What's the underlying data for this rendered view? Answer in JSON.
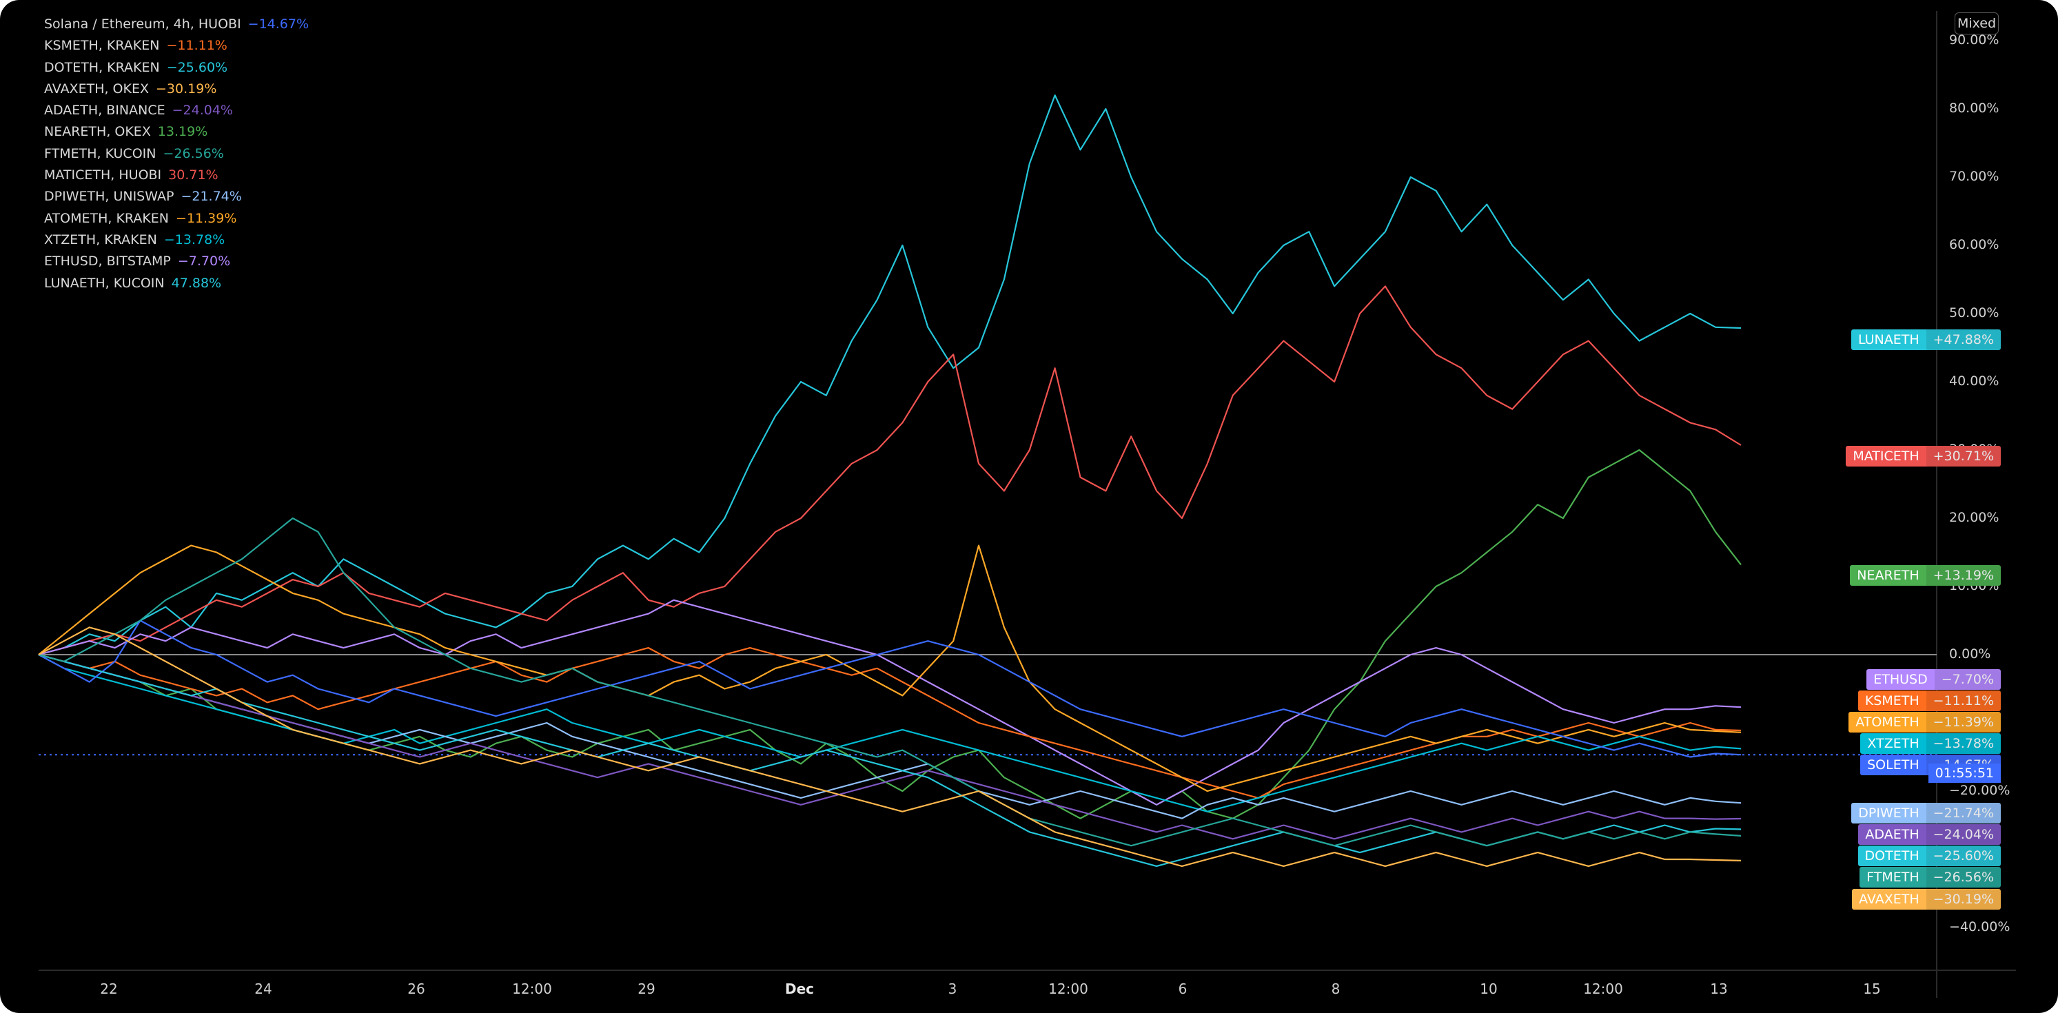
{
  "legend": [
    {
      "label": "Solana / Ethereum, 4h, HUOBI",
      "value": "−14.67%",
      "color": "#3d6bff"
    },
    {
      "label": "KSMETH, KRAKEN",
      "value": "−11.11%",
      "color": "#ff6d1f"
    },
    {
      "label": "DOTETH, KRAKEN",
      "value": "−25.60%",
      "color": "#26c6da"
    },
    {
      "label": "AVAXETH, OKEX",
      "value": "−30.19%",
      "color": "#ffb74d"
    },
    {
      "label": "ADAETH, BINANCE",
      "value": "−24.04%",
      "color": "#7e57c2"
    },
    {
      "label": "NEARETH, OKEX",
      "value": "13.19%",
      "color": "#4caf50"
    },
    {
      "label": "FTMETH, KUCOIN",
      "value": "−26.56%",
      "color": "#26a69a"
    },
    {
      "label": "MATICETH, HUOBI",
      "value": "30.71%",
      "color": "#ef5350"
    },
    {
      "label": "DPIWETH, UNISWAP",
      "value": "−21.74%",
      "color": "#90bff9"
    },
    {
      "label": "ATOMETH, KRAKEN",
      "value": "−11.39%",
      "color": "#ffa726"
    },
    {
      "label": "XTZETH, KRAKEN",
      "value": "−13.78%",
      "color": "#00bcd4"
    },
    {
      "label": "ETHUSD, BITSTAMP",
      "value": "−7.70%",
      "color": "#b388ff"
    },
    {
      "label": "LUNAETH, KUCOIN",
      "value": "47.88%",
      "color": "#26c6da"
    }
  ],
  "scale_mode": "Mixed",
  "price_tags": [
    {
      "name": "LUNAETH",
      "value": "+47.88%",
      "color": "#26c6da",
      "pct": 47.88
    },
    {
      "name": "MATICETH",
      "value": "+30.71%",
      "color": "#ef5350",
      "pct": 30.71
    },
    {
      "name": "NEARETH",
      "value": "+13.19%",
      "color": "#4caf50",
      "pct": 13.19
    },
    {
      "name": "ETHUSD",
      "value": "−7.70%",
      "color": "#b388ff",
      "pct": -7.7
    },
    {
      "name": "KSMETH",
      "value": "−11.11%",
      "color": "#ff6d1f",
      "pct": -11.11
    },
    {
      "name": "ATOMETH",
      "value": "−11.39%",
      "color": "#ffa726",
      "pct": -11.39
    },
    {
      "name": "XTZETH",
      "value": "−13.78%",
      "color": "#00bcd4",
      "pct": -13.78
    },
    {
      "name": "SOLETH",
      "value": "−14.67%",
      "color": "#3d6bff",
      "pct": -14.67
    },
    {
      "name": "DPIWETH",
      "value": "−21.74%",
      "color": "#90bff9",
      "pct": -21.74
    },
    {
      "name": "ADAETH",
      "value": "−24.04%",
      "color": "#7e57c2",
      "pct": -24.04
    },
    {
      "name": "DOTETH",
      "value": "−25.60%",
      "color": "#26c6da",
      "pct": -25.6
    },
    {
      "name": "FTMETH",
      "value": "−26.56%",
      "color": "#26a69a",
      "pct": -26.56
    },
    {
      "name": "AVAXETH",
      "value": "−30.19%",
      "color": "#ffb74d",
      "pct": -30.19
    }
  ],
  "countdown": "01:55:51",
  "chart_data": {
    "type": "line",
    "ylim": [
      -45,
      92
    ],
    "y_ticks": [
      {
        "v": 90,
        "label": "90.00%"
      },
      {
        "v": 80,
        "label": "80.00%"
      },
      {
        "v": 70,
        "label": "70.00%"
      },
      {
        "v": 60,
        "label": "60.00%"
      },
      {
        "v": 50,
        "label": "50.00%"
      },
      {
        "v": 40,
        "label": "40.00%"
      },
      {
        "v": 30,
        "label": "30.00%"
      },
      {
        "v": 20,
        "label": "20.00%"
      },
      {
        "v": 10,
        "label": "10.00%"
      },
      {
        "v": 0,
        "label": "0.00%"
      },
      {
        "v": -20,
        "label": "−20.00%"
      },
      {
        "v": -40,
        "label": "−40.00%"
      }
    ],
    "x_ticks": [
      {
        "label": "22"
      },
      {
        "label": "24"
      },
      {
        "label": "26"
      },
      {
        "label": "12:00"
      },
      {
        "label": "29"
      },
      {
        "label": "Dec",
        "bold": true
      },
      {
        "label": "3"
      },
      {
        "label": "12:00"
      },
      {
        "label": "6"
      },
      {
        "label": "8"
      },
      {
        "label": "10"
      },
      {
        "label": "12:00"
      },
      {
        "label": "13"
      },
      {
        "label": "15"
      }
    ],
    "series": [
      {
        "name": "LUNAETH",
        "color": "#26c6da",
        "values": [
          0,
          1,
          3,
          2,
          5,
          7,
          4,
          9,
          8,
          10,
          12,
          10,
          14,
          12,
          10,
          8,
          6,
          5,
          4,
          6,
          9,
          10,
          14,
          16,
          14,
          17,
          15,
          20,
          28,
          35,
          40,
          38,
          46,
          52,
          60,
          48,
          42,
          45,
          55,
          72,
          82,
          74,
          80,
          70,
          62,
          58,
          55,
          50,
          56,
          60,
          62,
          54,
          58,
          62,
          70,
          68,
          62,
          66,
          60,
          56,
          52,
          55,
          50,
          46,
          48,
          50,
          48,
          47.88
        ]
      },
      {
        "name": "MATICETH",
        "color": "#ef5350",
        "values": [
          0,
          1,
          2,
          3,
          2,
          4,
          6,
          8,
          7,
          9,
          11,
          10,
          12,
          9,
          8,
          7,
          9,
          8,
          7,
          6,
          5,
          8,
          10,
          12,
          8,
          7,
          9,
          10,
          14,
          18,
          20,
          24,
          28,
          30,
          34,
          40,
          44,
          28,
          24,
          30,
          42,
          26,
          24,
          32,
          24,
          20,
          28,
          38,
          42,
          46,
          43,
          40,
          50,
          54,
          48,
          44,
          42,
          38,
          36,
          40,
          44,
          46,
          42,
          38,
          36,
          34,
          33,
          30.71
        ]
      },
      {
        "name": "NEARETH",
        "color": "#4caf50",
        "values": [
          0,
          -1,
          -2,
          -3,
          -4,
          -6,
          -5,
          -8,
          -9,
          -10,
          -11,
          -12,
          -13,
          -14,
          -13,
          -12,
          -14,
          -15,
          -13,
          -12,
          -14,
          -15,
          -13,
          -12,
          -11,
          -14,
          -13,
          -12,
          -11,
          -14,
          -16,
          -13,
          -15,
          -18,
          -20,
          -17,
          -15,
          -14,
          -18,
          -20,
          -22,
          -24,
          -22,
          -20,
          -22,
          -20,
          -23,
          -24,
          -22,
          -18,
          -14,
          -8,
          -4,
          2,
          6,
          10,
          12,
          15,
          18,
          22,
          20,
          26,
          28,
          30,
          27,
          24,
          18,
          13.19
        ]
      },
      {
        "name": "ETHUSD",
        "color": "#b388ff",
        "values": [
          0,
          1,
          2,
          1,
          3,
          2,
          4,
          3,
          2,
          1,
          3,
          2,
          1,
          2,
          3,
          1,
          0,
          2,
          3,
          1,
          2,
          3,
          4,
          5,
          6,
          8,
          7,
          6,
          5,
          4,
          3,
          2,
          1,
          0,
          -2,
          -4,
          -6,
          -8,
          -10,
          -12,
          -14,
          -16,
          -18,
          -20,
          -22,
          -20,
          -18,
          -16,
          -14,
          -10,
          -8,
          -6,
          -4,
          -2,
          0,
          1,
          0,
          -2,
          -4,
          -6,
          -8,
          -9,
          -10,
          -9,
          -8,
          -8,
          -7.5,
          -7.7
        ]
      },
      {
        "name": "KSMETH",
        "color": "#ff6d1f",
        "values": [
          0,
          -1,
          -2,
          -1,
          -3,
          -4,
          -5,
          -6,
          -5,
          -7,
          -6,
          -8,
          -7,
          -6,
          -5,
          -4,
          -3,
          -2,
          -1,
          -3,
          -4,
          -2,
          -1,
          0,
          1,
          -1,
          -2,
          0,
          1,
          0,
          -1,
          -2,
          -3,
          -2,
          -4,
          -6,
          -8,
          -10,
          -11,
          -12,
          -13,
          -14,
          -15,
          -16,
          -17,
          -18,
          -19,
          -20,
          -21,
          -19,
          -18,
          -17,
          -16,
          -15,
          -14,
          -13,
          -12,
          -12,
          -11,
          -12,
          -11,
          -10,
          -11,
          -12,
          -11,
          -10,
          -11,
          -11.11
        ]
      },
      {
        "name": "ATOMETH",
        "color": "#ffa726",
        "values": [
          0,
          3,
          6,
          9,
          12,
          14,
          16,
          15,
          13,
          11,
          9,
          8,
          6,
          5,
          4,
          3,
          1,
          0,
          -1,
          -2,
          -3,
          -2,
          -4,
          -5,
          -6,
          -4,
          -3,
          -5,
          -4,
          -2,
          -1,
          0,
          -2,
          -4,
          -6,
          -2,
          2,
          16,
          4,
          -4,
          -8,
          -10,
          -12,
          -14,
          -16,
          -18,
          -20,
          -19,
          -18,
          -17,
          -16,
          -15,
          -14,
          -13,
          -12,
          -13,
          -12,
          -11,
          -12,
          -13,
          -12,
          -11,
          -12,
          -11,
          -10,
          -11,
          -11.2,
          -11.39
        ]
      },
      {
        "name": "XTZETH",
        "color": "#00bcd4",
        "values": [
          0,
          -2,
          -3,
          -4,
          -5,
          -6,
          -7,
          -8,
          -9,
          -10,
          -11,
          -12,
          -13,
          -12,
          -11,
          -13,
          -12,
          -11,
          -10,
          -9,
          -8,
          -10,
          -11,
          -12,
          -13,
          -12,
          -11,
          -12,
          -13,
          -14,
          -15,
          -14,
          -13,
          -12,
          -11,
          -12,
          -13,
          -14,
          -15,
          -16,
          -17,
          -18,
          -19,
          -20,
          -21,
          -22,
          -23,
          -22,
          -21,
          -20,
          -19,
          -18,
          -17,
          -16,
          -15,
          -14,
          -13,
          -14,
          -13,
          -12,
          -13,
          -14,
          -13,
          -12,
          -13,
          -14,
          -13.5,
          -13.78
        ]
      },
      {
        "name": "SOLETH",
        "color": "#3d6bff",
        "values": [
          0,
          -2,
          -4,
          -1,
          5,
          3,
          1,
          0,
          -2,
          -4,
          -3,
          -5,
          -6,
          -7,
          -5,
          -6,
          -7,
          -8,
          -9,
          -8,
          -7,
          -6,
          -5,
          -4,
          -3,
          -2,
          -1,
          -3,
          -5,
          -4,
          -3,
          -2,
          -1,
          0,
          1,
          2,
          1,
          0,
          -2,
          -4,
          -6,
          -8,
          -9,
          -10,
          -11,
          -12,
          -11,
          -10,
          -9,
          -8,
          -9,
          -10,
          -11,
          -12,
          -10,
          -9,
          -8,
          -9,
          -10,
          -11,
          -12,
          -13,
          -14,
          -13,
          -14,
          -15,
          -14.5,
          -14.67
        ]
      },
      {
        "name": "DPIWETH",
        "color": "#90bff9",
        "values": [
          0,
          -1,
          -2,
          -3,
          -4,
          -5,
          -6,
          -7,
          -8,
          -9,
          -10,
          -11,
          -12,
          -13,
          -12,
          -11,
          -12,
          -13,
          -12,
          -11,
          -10,
          -12,
          -13,
          -14,
          -15,
          -16,
          -17,
          -18,
          -19,
          -20,
          -21,
          -20,
          -19,
          -18,
          -17,
          -16,
          -18,
          -20,
          -21,
          -22,
          -21,
          -20,
          -21,
          -22,
          -23,
          -24,
          -22,
          -21,
          -22,
          -21,
          -22,
          -23,
          -22,
          -21,
          -20,
          -21,
          -22,
          -21,
          -20,
          -21,
          -22,
          -21,
          -20,
          -21,
          -22,
          -21,
          -21.5,
          -21.74
        ]
      },
      {
        "name": "ADAETH",
        "color": "#7e57c2",
        "values": [
          0,
          -1,
          -2,
          -3,
          -4,
          -5,
          -6,
          -7,
          -8,
          -9,
          -10,
          -11,
          -12,
          -13,
          -14,
          -15,
          -14,
          -13,
          -14,
          -15,
          -16,
          -17,
          -18,
          -17,
          -16,
          -17,
          -18,
          -19,
          -20,
          -21,
          -22,
          -21,
          -20,
          -19,
          -18,
          -17,
          -18,
          -19,
          -20,
          -21,
          -22,
          -23,
          -24,
          -25,
          -26,
          -25,
          -26,
          -27,
          -26,
          -25,
          -26,
          -27,
          -26,
          -25,
          -24,
          -25,
          -26,
          -25,
          -24,
          -25,
          -24,
          -23,
          -24,
          -23,
          -24,
          -24,
          -24.1,
          -24.04
        ]
      },
      {
        "name": "DOTETH",
        "color": "#26c6da",
        "values": [
          0,
          -1,
          -2,
          -3,
          -4,
          -5,
          -6,
          -5,
          -7,
          -8,
          -9,
          -10,
          -11,
          -12,
          -13,
          -14,
          -13,
          -12,
          -11,
          -12,
          -13,
          -14,
          -15,
          -14,
          -13,
          -14,
          -15,
          -16,
          -17,
          -16,
          -15,
          -14,
          -15,
          -16,
          -17,
          -18,
          -20,
          -22,
          -24,
          -26,
          -27,
          -28,
          -29,
          -30,
          -31,
          -30,
          -29,
          -28,
          -27,
          -26,
          -27,
          -28,
          -29,
          -28,
          -27,
          -26,
          -27,
          -28,
          -27,
          -26,
          -27,
          -26,
          -25,
          -26,
          -25,
          -26,
          -25.5,
          -25.6
        ]
      },
      {
        "name": "FTMETH",
        "color": "#26a69a",
        "values": [
          0,
          -1,
          1,
          3,
          5,
          8,
          10,
          12,
          14,
          17,
          20,
          18,
          12,
          8,
          4,
          2,
          0,
          -2,
          -3,
          -4,
          -3,
          -2,
          -4,
          -5,
          -6,
          -7,
          -8,
          -9,
          -10,
          -11,
          -12,
          -13,
          -14,
          -15,
          -14,
          -16,
          -18,
          -20,
          -22,
          -24,
          -25,
          -26,
          -27,
          -28,
          -27,
          -26,
          -25,
          -24,
          -25,
          -26,
          -27,
          -28,
          -27,
          -26,
          -25,
          -26,
          -27,
          -28,
          -27,
          -26,
          -27,
          -26,
          -27,
          -26,
          -27,
          -26,
          -26.3,
          -26.56
        ]
      },
      {
        "name": "AVAXETH",
        "color": "#ffb74d",
        "values": [
          0,
          2,
          4,
          3,
          1,
          -1,
          -3,
          -5,
          -7,
          -9,
          -11,
          -12,
          -13,
          -14,
          -15,
          -16,
          -15,
          -14,
          -15,
          -16,
          -15,
          -14,
          -15,
          -16,
          -17,
          -16,
          -15,
          -16,
          -17,
          -18,
          -19,
          -20,
          -21,
          -22,
          -23,
          -22,
          -21,
          -20,
          -22,
          -24,
          -26,
          -27,
          -28,
          -29,
          -30,
          -31,
          -30,
          -29,
          -30,
          -31,
          -30,
          -29,
          -30,
          -31,
          -30,
          -29,
          -30,
          -31,
          -30,
          -29,
          -30,
          -31,
          -30,
          -29,
          -30,
          -30,
          -30.1,
          -30.19
        ]
      }
    ]
  }
}
